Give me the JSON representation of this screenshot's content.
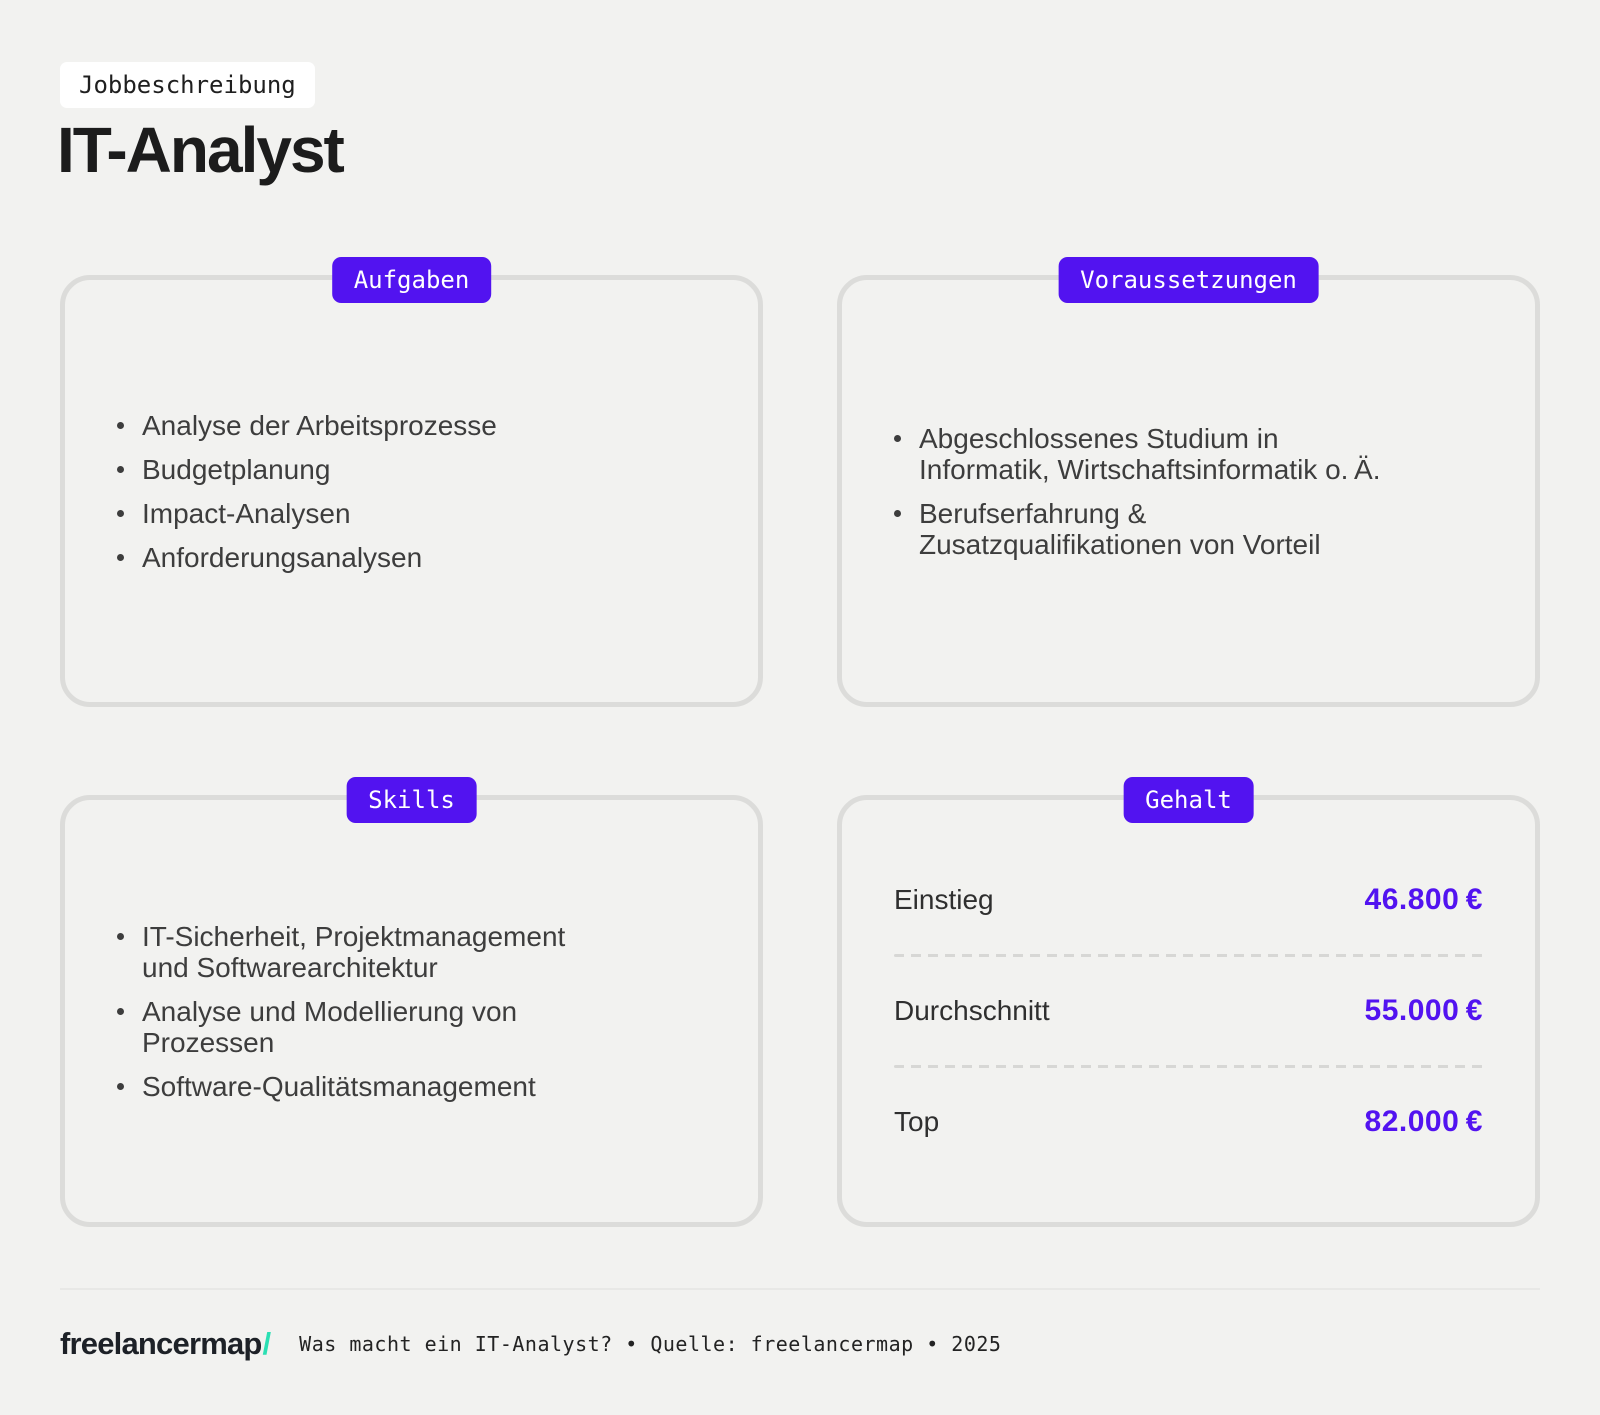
{
  "page": {
    "kicker": "Jobbeschreibung",
    "title": "IT-Analyst"
  },
  "colors": {
    "background": "#f2f2f0",
    "accent_purple": "#5213f0",
    "accent_teal": "#2bdfb3",
    "card_border": "#dcdcda"
  },
  "cards": {
    "aufgaben": {
      "badge": "Aufgaben",
      "items": [
        "Analyse der Arbeitsprozesse",
        "Budgetplanung",
        "Impact-Analysen",
        "Anforderungsanalysen"
      ]
    },
    "voraussetzungen": {
      "badge": "Voraussetzungen",
      "items": [
        "Abgeschlossenes Studium in\nInformatik, Wirtschaftsinformatik o. Ä.",
        "Berufserfahrung &\nZusatzqualifikationen von Vorteil"
      ]
    },
    "skills": {
      "badge": "Skills",
      "items": [
        "IT-Sicherheit, Projektmanagement\nund Softwarearchitektur",
        "Analyse und Modellierung von\nProzessen",
        "Software-Qualitätsmanagement"
      ]
    },
    "gehalt": {
      "badge": "Gehalt",
      "rows": [
        {
          "label": "Einstieg",
          "value": "46.800 €"
        },
        {
          "label": "Durchschnitt",
          "value": "55.000 €"
        },
        {
          "label": "Top",
          "value": "82.000 €"
        }
      ]
    }
  },
  "footer": {
    "logo_text": "freelancermap",
    "logo_slash": "/",
    "caption": "Was macht ein IT-Analyst? • Quelle: freelancermap • 2025"
  }
}
